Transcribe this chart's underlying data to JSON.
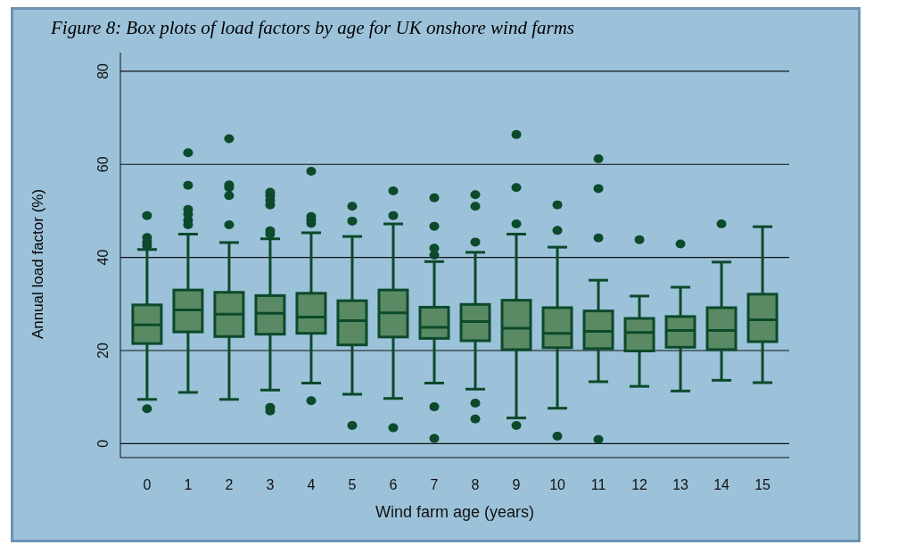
{
  "chart_data": {
    "type": "box",
    "title": "Figure 8: Box plots of load factors by age for UK onshore wind farms",
    "xlabel": "Wind farm age (years)",
    "ylabel": "Annual load factor (%)",
    "categories": [
      "0",
      "1",
      "2",
      "3",
      "4",
      "5",
      "6",
      "7",
      "8",
      "9",
      "10",
      "11",
      "12",
      "13",
      "14",
      "15"
    ],
    "color": "#5a8a64",
    "ylim": [
      -3,
      84
    ],
    "yticks": [
      0,
      20,
      40,
      60,
      80
    ],
    "grid": "y",
    "boxes": [
      {
        "low": 9.5,
        "q1": 21.5,
        "median": 25.5,
        "q3": 29.8,
        "high": 41.7,
        "outliers": [
          7.5,
          42.5,
          43.3,
          44.3,
          49
        ]
      },
      {
        "low": 11,
        "q1": 24,
        "median": 28.7,
        "q3": 33,
        "high": 45,
        "outliers": [
          47,
          48,
          49.3,
          50.3,
          55.5,
          62.5
        ]
      },
      {
        "low": 9.5,
        "q1": 23,
        "median": 27.8,
        "q3": 32.5,
        "high": 43.2,
        "outliers": [
          47,
          53.3,
          55,
          55.6,
          65.5
        ]
      },
      {
        "low": 11.5,
        "q1": 23.5,
        "median": 28,
        "q3": 31.8,
        "high": 44,
        "outliers": [
          7,
          7.8,
          45,
          45.7,
          51.3,
          52.3,
          53.3,
          54
        ]
      },
      {
        "low": 13,
        "q1": 23.7,
        "median": 27.2,
        "q3": 32.3,
        "high": 45.3,
        "outliers": [
          9.2,
          47.3,
          48,
          48.8,
          58.5
        ]
      },
      {
        "low": 10.6,
        "q1": 21.2,
        "median": 26.4,
        "q3": 30.7,
        "high": 44.5,
        "outliers": [
          3.9,
          47.8,
          51
        ]
      },
      {
        "low": 9.7,
        "q1": 22.9,
        "median": 28.1,
        "q3": 33,
        "high": 47.2,
        "outliers": [
          3.4,
          49,
          54.3
        ]
      },
      {
        "low": 13,
        "q1": 22.6,
        "median": 25,
        "q3": 29.3,
        "high": 39.1,
        "outliers": [
          1.1,
          7.9,
          40.5,
          42,
          46.7,
          52.8
        ]
      },
      {
        "low": 11.7,
        "q1": 22.1,
        "median": 26.2,
        "q3": 29.9,
        "high": 41.1,
        "outliers": [
          5.3,
          8.7,
          43.3,
          51,
          53.5
        ]
      },
      {
        "low": 5.5,
        "q1": 20.2,
        "median": 24.8,
        "q3": 30.8,
        "high": 45,
        "outliers": [
          3.9,
          47.2,
          55,
          66.4
        ]
      },
      {
        "low": 7.6,
        "q1": 20.6,
        "median": 23.7,
        "q3": 29.2,
        "high": 42.2,
        "outliers": [
          1.6,
          45.8,
          51.3
        ]
      },
      {
        "low": 13.3,
        "q1": 20.4,
        "median": 24.1,
        "q3": 28.5,
        "high": 35.1,
        "outliers": [
          0.9,
          44.2,
          54.8,
          61.2
        ]
      },
      {
        "low": 12.3,
        "q1": 19.9,
        "median": 23.9,
        "q3": 26.9,
        "high": 31.7,
        "outliers": [
          43.8
        ]
      },
      {
        "low": 11.3,
        "q1": 20.7,
        "median": 24.3,
        "q3": 27.3,
        "high": 33.6,
        "outliers": [
          42.9
        ]
      },
      {
        "low": 13.6,
        "q1": 20.2,
        "median": 24.3,
        "q3": 29.2,
        "high": 39,
        "outliers": [
          47.2
        ]
      },
      {
        "low": 13.1,
        "q1": 21.9,
        "median": 26.6,
        "q3": 32.1,
        "high": 46.6
      }
    ]
  }
}
